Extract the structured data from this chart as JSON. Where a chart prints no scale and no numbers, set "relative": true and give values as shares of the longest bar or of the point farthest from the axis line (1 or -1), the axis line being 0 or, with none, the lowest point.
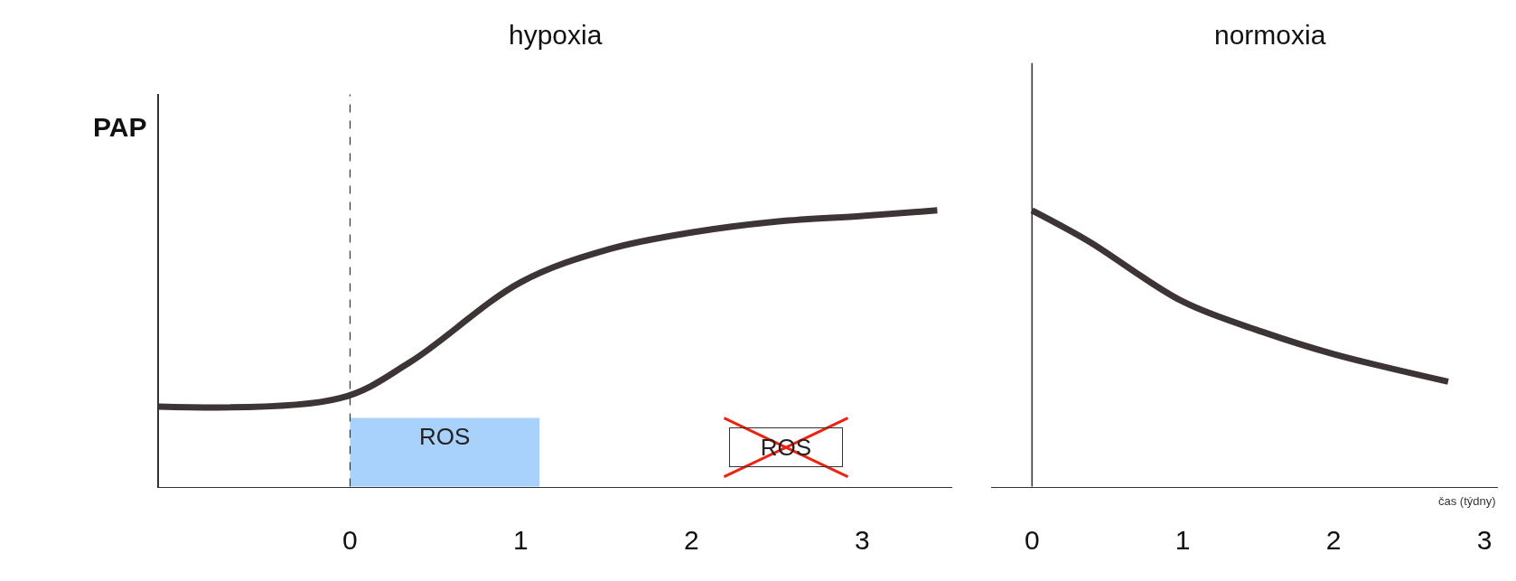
{
  "chart_data": [
    {
      "type": "line",
      "title": "hypoxia",
      "ylabel": "PAP",
      "relative": true,
      "xlim": [
        -1.12,
        3.53
      ],
      "xticks": [
        0,
        1,
        2,
        3
      ],
      "tick_labels": "x",
      "grid": false,
      "marker": "none",
      "line_style": "solid",
      "x": [
        -1.12,
        -0.06,
        0.35,
        1,
        1.52,
        2,
        2.51,
        3,
        3.44
      ],
      "series": [
        {
          "color": "#3d3535",
          "values": [
            0.29,
            0.32,
            0.45,
            0.74,
            0.86,
            0.92,
            0.96,
            0.98,
            1.0
          ]
        }
      ],
      "ref_lines": [
        {
          "axis": "x",
          "value": 0,
          "line_style": "dashed",
          "color": "#333333"
        }
      ],
      "bands": [
        {
          "axis": "x",
          "from": 0,
          "to": 1.11,
          "label": "ROS",
          "color": "#a8d1fb"
        }
      ],
      "annotations": [
        "ROS"
      ]
    },
    {
      "type": "line",
      "title": "normoxia",
      "xlabel": "čas (týdny)",
      "relative": true,
      "xlim": [
        -0.27,
        3.09
      ],
      "xticks": [
        0,
        1,
        2,
        3
      ],
      "tick_labels": "x",
      "grid": false,
      "marker": "none",
      "line_style": "solid",
      "x": [
        0,
        0.37,
        1,
        1.53,
        2,
        2.76
      ],
      "series": [
        {
          "color": "#3d3535",
          "values": [
            1.0,
            0.89,
            0.67,
            0.56,
            0.48,
            0.38
          ]
        }
      ],
      "ref_lines": [
        {
          "axis": "x",
          "value": 0,
          "line_style": "solid",
          "color": "#333333"
        }
      ]
    }
  ]
}
